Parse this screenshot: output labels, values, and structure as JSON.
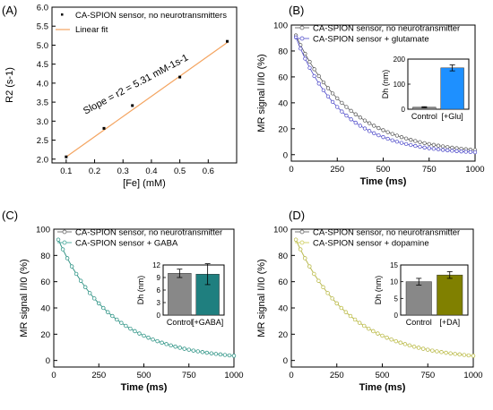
{
  "figure": {
    "panels": [
      {
        "id": "A",
        "label": "(A)",
        "xlabel": "[Fe] (mM)",
        "ylabel": "R2 (s-1)",
        "annotation": "Slope = r2 = 5.31 mM-1s-1",
        "legend": [
          "CA-SPION sensor, no neurotransmitters",
          "Linear fit"
        ]
      },
      {
        "id": "B",
        "label": "(B)",
        "xlabel": "Time (ms)",
        "ylabel": "MR signal I/I0 (%)",
        "legend": [
          "CA-SPION sensor, no neurotransmitter",
          "CA-SPION sensor + glutamate"
        ],
        "inset": {
          "ylabel": "Dh (nm)",
          "categories": [
            "Control",
            "[+Glu]"
          ]
        }
      },
      {
        "id": "C",
        "label": "(C)",
        "xlabel": "Time (ms)",
        "ylabel": "MR signal I/I0 (%)",
        "legend": [
          "CA-SPION sensor, no neurotransmitter",
          "CA-SPION sensor + GABA"
        ],
        "inset": {
          "ylabel": "Dh (nm)",
          "categories": [
            "Control",
            "[+GABA]"
          ]
        }
      },
      {
        "id": "D",
        "label": "(D)",
        "xlabel": "Time (ms)",
        "ylabel": "MR signal I/I0 (%)",
        "legend": [
          "CA-SPION sensor, no neurotransmitter",
          "CA-SPION sensor + dopamine"
        ],
        "inset": {
          "ylabel": "Dh (nm)",
          "categories": [
            "Control",
            "[+DA]"
          ]
        }
      }
    ]
  },
  "chart_data": [
    {
      "type": "scatter",
      "panel": "A",
      "xlabel": "[Fe] (mM)",
      "ylabel": "R2 (s-1)",
      "xlim": [
        0.05,
        0.7
      ],
      "ylim": [
        1.9,
        6.0
      ],
      "xticks": [
        0.1,
        0.2,
        0.3,
        0.4,
        0.5,
        0.6
      ],
      "yticks": [
        2.0,
        2.5,
        3.0,
        3.5,
        4.0,
        4.5,
        5.0,
        5.5,
        6.0
      ],
      "series": [
        {
          "name": "CA-SPION sensor, no neurotransmitters",
          "kind": "points",
          "color": "#000000",
          "x": [
            0.1,
            0.233,
            0.333,
            0.5,
            0.667
          ],
          "y": [
            2.06,
            2.81,
            3.41,
            4.16,
            5.1
          ]
        },
        {
          "name": "Linear fit",
          "kind": "line",
          "color": "#f4a460",
          "x": [
            0.1,
            0.667
          ],
          "y": [
            2.06,
            5.07
          ]
        }
      ],
      "annotation": "Slope = r2 = 5.31 mM-1s-1",
      "legend_position": "top-left"
    },
    {
      "type": "line",
      "panel": "B",
      "xlabel": "Time (ms)",
      "ylabel": "MR signal I/I0 (%)",
      "xlim": [
        0,
        1000
      ],
      "ylim": [
        -5,
        100
      ],
      "xticks": [
        0,
        250,
        500,
        750,
        1000
      ],
      "yticks": [
        0,
        20,
        40,
        60,
        80,
        100
      ],
      "model": {
        "type": "exponential_decay",
        "a0": 100,
        "tau_ms": [
          300,
          250
        ],
        "sample_step_ms": 25,
        "sample_start_ms": 25
      },
      "series": [
        {
          "name": "CA-SPION sensor, no neurotransmitter",
          "color": "#555555"
        },
        {
          "name": "CA-SPION sensor + glutamate",
          "color": "#4a46c8"
        }
      ],
      "inset": {
        "type": "bar",
        "ylabel": "Dh (nm)",
        "categories": [
          "Control",
          "[+Glu]"
        ],
        "values": [
          8,
          165
        ],
        "errors": [
          2,
          12
        ],
        "colors": [
          "#888888",
          "#1e90ff"
        ],
        "ylim": [
          0,
          200
        ],
        "yticks": [
          0,
          100,
          200
        ]
      },
      "legend_position": "top-right"
    },
    {
      "type": "line",
      "panel": "C",
      "xlabel": "Time (ms)",
      "ylabel": "MR signal I/I0 (%)",
      "xlim": [
        0,
        1000
      ],
      "ylim": [
        -5,
        100
      ],
      "xticks": [
        0,
        250,
        500,
        750,
        1000
      ],
      "yticks": [
        0,
        20,
        40,
        60,
        80,
        100
      ],
      "model": {
        "type": "exponential_decay",
        "a0": 100,
        "tau_ms": [
          300,
          300
        ],
        "sample_step_ms": 25,
        "sample_start_ms": 25
      },
      "series": [
        {
          "name": "CA-SPION sensor, no neurotransmitter",
          "color": "#555555"
        },
        {
          "name": "CA-SPION sensor + GABA",
          "color": "#2e9e8e"
        }
      ],
      "inset": {
        "type": "bar",
        "ylabel": "Dh (nm)",
        "categories": [
          "Control",
          "[+GABA]"
        ],
        "values": [
          10,
          9.8
        ],
        "errors": [
          1,
          2.5
        ],
        "colors": [
          "#888888",
          "#1f7f7f"
        ],
        "ylim": [
          0,
          12
        ],
        "yticks": [
          0,
          3,
          6,
          9,
          12
        ]
      },
      "legend_position": "top-right"
    },
    {
      "type": "line",
      "panel": "D",
      "xlabel": "Time (ms)",
      "ylabel": "MR signal I/I0 (%)",
      "xlim": [
        0,
        1000
      ],
      "ylim": [
        -5,
        100
      ],
      "xticks": [
        0,
        250,
        500,
        750,
        1000
      ],
      "yticks": [
        0,
        20,
        40,
        60,
        80,
        100
      ],
      "model": {
        "type": "exponential_decay",
        "a0": 100,
        "tau_ms": [
          300,
          300
        ],
        "sample_step_ms": 25,
        "sample_start_ms": 25
      },
      "series": [
        {
          "name": "CA-SPION sensor, no neurotransmitter",
          "color": "#555555"
        },
        {
          "name": "CA-SPION sensor + dopamine",
          "color": "#c8c84a"
        }
      ],
      "inset": {
        "type": "bar",
        "ylabel": "Dh (nm)",
        "categories": [
          "Control",
          "[+DA]"
        ],
        "values": [
          10,
          12
        ],
        "errors": [
          1,
          1
        ],
        "colors": [
          "#888888",
          "#808000"
        ],
        "ylim": [
          0,
          15
        ],
        "yticks": [
          0,
          5,
          10,
          15
        ]
      },
      "legend_position": "top-right"
    }
  ]
}
